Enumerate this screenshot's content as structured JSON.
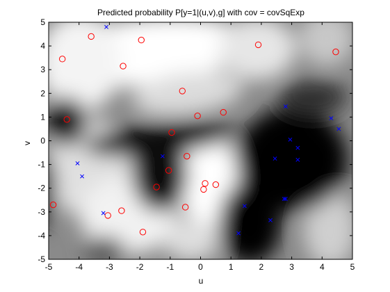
{
  "chart_data": {
    "type": "scatter",
    "title": "Predicted probability P[y=1|(u,v),g] with cov = covSqExp",
    "xlabel": "u",
    "ylabel": "v",
    "xlim": [
      -5,
      5
    ],
    "ylim": [
      -5,
      5
    ],
    "xticks": [
      "-5",
      "-4",
      "-3",
      "-2",
      "-1",
      "0",
      "1",
      "2",
      "3",
      "4",
      "5"
    ],
    "yticks": [
      "-5",
      "-4",
      "-3",
      "-2",
      "-1",
      "0",
      "1",
      "2",
      "3",
      "4",
      "5"
    ],
    "grid": false,
    "legend": "none",
    "background": "heatmap",
    "colors": {
      "circle": "#ff0000",
      "cross": "#0000ff"
    },
    "series": [
      {
        "marker": "circle",
        "points": [
          [
            -3.6,
            4.4
          ],
          [
            -1.95,
            4.25
          ],
          [
            -4.55,
            3.45
          ],
          [
            -2.55,
            3.15
          ],
          [
            1.9,
            4.05
          ],
          [
            4.45,
            3.75
          ],
          [
            -0.6,
            2.1
          ],
          [
            0.75,
            1.2
          ],
          [
            -0.1,
            1.05
          ],
          [
            -4.4,
            0.9
          ],
          [
            -0.95,
            0.35
          ],
          [
            -0.45,
            -0.65
          ],
          [
            -1.05,
            -1.25
          ],
          [
            -1.45,
            -1.95
          ],
          [
            0.15,
            -1.8
          ],
          [
            0.5,
            -1.85
          ],
          [
            0.1,
            -2.05
          ],
          [
            -4.85,
            -2.7
          ],
          [
            -2.6,
            -2.95
          ],
          [
            -3.05,
            -3.15
          ],
          [
            -0.5,
            -2.8
          ],
          [
            -1.9,
            -3.85
          ]
        ]
      },
      {
        "marker": "cross",
        "points": [
          [
            -3.1,
            4.8
          ],
          [
            2.8,
            1.45
          ],
          [
            4.3,
            0.95
          ],
          [
            4.55,
            0.5
          ],
          [
            2.95,
            0.05
          ],
          [
            3.2,
            -0.3
          ],
          [
            -4.05,
            -0.95
          ],
          [
            -1.25,
            -0.65
          ],
          [
            2.45,
            -0.75
          ],
          [
            3.2,
            -0.8
          ],
          [
            -3.9,
            -1.5
          ],
          [
            2.75,
            -2.45
          ],
          [
            2.8,
            -2.45
          ],
          [
            1.45,
            -2.75
          ],
          [
            -3.2,
            -3.05
          ],
          [
            2.3,
            -3.35
          ],
          [
            1.25,
            -3.9
          ]
        ]
      }
    ]
  }
}
